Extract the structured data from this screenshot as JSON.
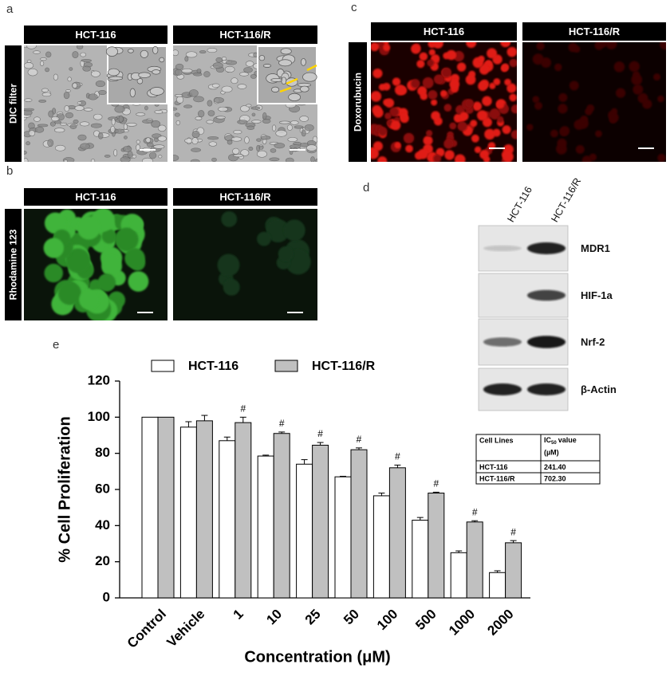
{
  "panels": {
    "a": "a",
    "b": "b",
    "c": "c",
    "d": "d",
    "e": "e"
  },
  "microscopy": {
    "cell_lines": [
      "HCT-116",
      "HCT-116/R"
    ],
    "dic": "DIC filter",
    "rhodamine": "Rhodamine 123",
    "doxorubicin": "Doxorubucin"
  },
  "western_blot": {
    "lanes": [
      "HCT-116",
      "HCT-116/R"
    ],
    "proteins": [
      "MDR1",
      "HIF-1a",
      "Nrf-2",
      "β-Actin"
    ]
  },
  "ic50_table": {
    "header": {
      "cell_lines": "Cell Lines",
      "ic": "IC",
      "sub": "50",
      "rest": "value",
      "unit": "(µM)"
    },
    "rows": [
      [
        "HCT-116",
        "241.40"
      ],
      [
        "HCT-116/R",
        "702.30"
      ]
    ]
  },
  "chart_data": {
    "type": "bar",
    "x_label": "Concentration (μM)",
    "y_label": "% Cell Proliferation",
    "categories": [
      "Control",
      "Vehicle",
      "1",
      "10",
      "25",
      "50",
      "100",
      "500",
      "1000",
      "2000"
    ],
    "series": [
      {
        "name": "HCT-116",
        "color": "#ffffff",
        "values": [
          100,
          94.5,
          87,
          78.5,
          74,
          67,
          56.5,
          43,
          25,
          14
        ],
        "errors": [
          0,
          3,
          2,
          0.5,
          2.5,
          0.3,
          1.5,
          1.5,
          1,
          1
        ]
      },
      {
        "name": "HCT-116/R",
        "color": "#c0c0c0",
        "values": [
          100,
          98,
          97,
          91,
          84.5,
          82,
          72,
          58,
          42,
          30.5
        ],
        "errors": [
          0,
          3,
          3,
          0.8,
          1.5,
          1,
          1.5,
          0.5,
          0.7,
          1.2
        ]
      }
    ],
    "markers": [
      null,
      null,
      "#",
      "#",
      "#",
      "#",
      "#",
      "#",
      "#",
      "#"
    ],
    "ylim": [
      0,
      120
    ],
    "yticks": [
      0,
      20,
      40,
      60,
      80,
      100,
      120
    ],
    "grid": false,
    "legend": "top"
  }
}
